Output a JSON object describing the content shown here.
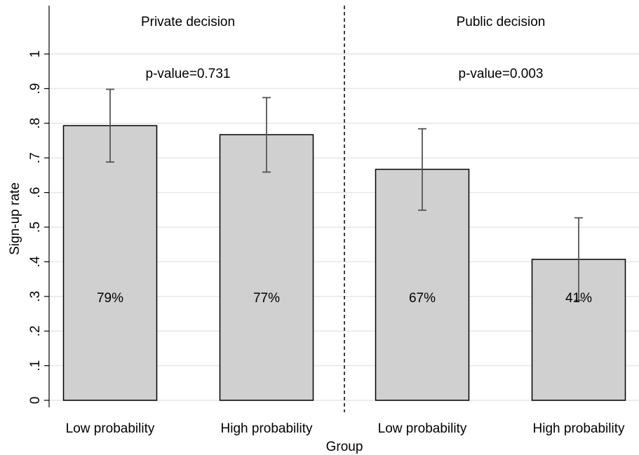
{
  "chart_data": {
    "type": "bar",
    "xlabel": "Group",
    "ylabel": "Sign-up rate",
    "ylim": [
      0,
      1
    ],
    "yticks": [
      "0",
      ".1",
      ".2",
      ".3",
      ".4",
      ".5",
      ".6",
      ".7",
      ".8",
      ".9",
      "1"
    ],
    "grid": true,
    "panels": [
      {
        "label": "Private decision",
        "p_value_text": "p-value=0.731",
        "bars": [
          {
            "category": "Low probability",
            "value": 0.793,
            "ci_low": 0.688,
            "ci_high": 0.898,
            "label": "79%"
          },
          {
            "category": "High probability",
            "value": 0.767,
            "ci_low": 0.659,
            "ci_high": 0.874,
            "label": "77%"
          }
        ]
      },
      {
        "label": "Public decision",
        "p_value_text": "p-value=0.003",
        "bars": [
          {
            "category": "Low probability",
            "value": 0.667,
            "ci_low": 0.549,
            "ci_high": 0.784,
            "label": "67%"
          },
          {
            "category": "High probability",
            "value": 0.407,
            "ci_low": 0.289,
            "ci_high": 0.527,
            "label": "41%"
          }
        ]
      }
    ],
    "colors": {
      "bar_fill": "#d0d0d0",
      "bar_stroke": "#000000",
      "error_bar": "#555555",
      "grid": "#e6e6e6",
      "divider": "#000000"
    }
  }
}
